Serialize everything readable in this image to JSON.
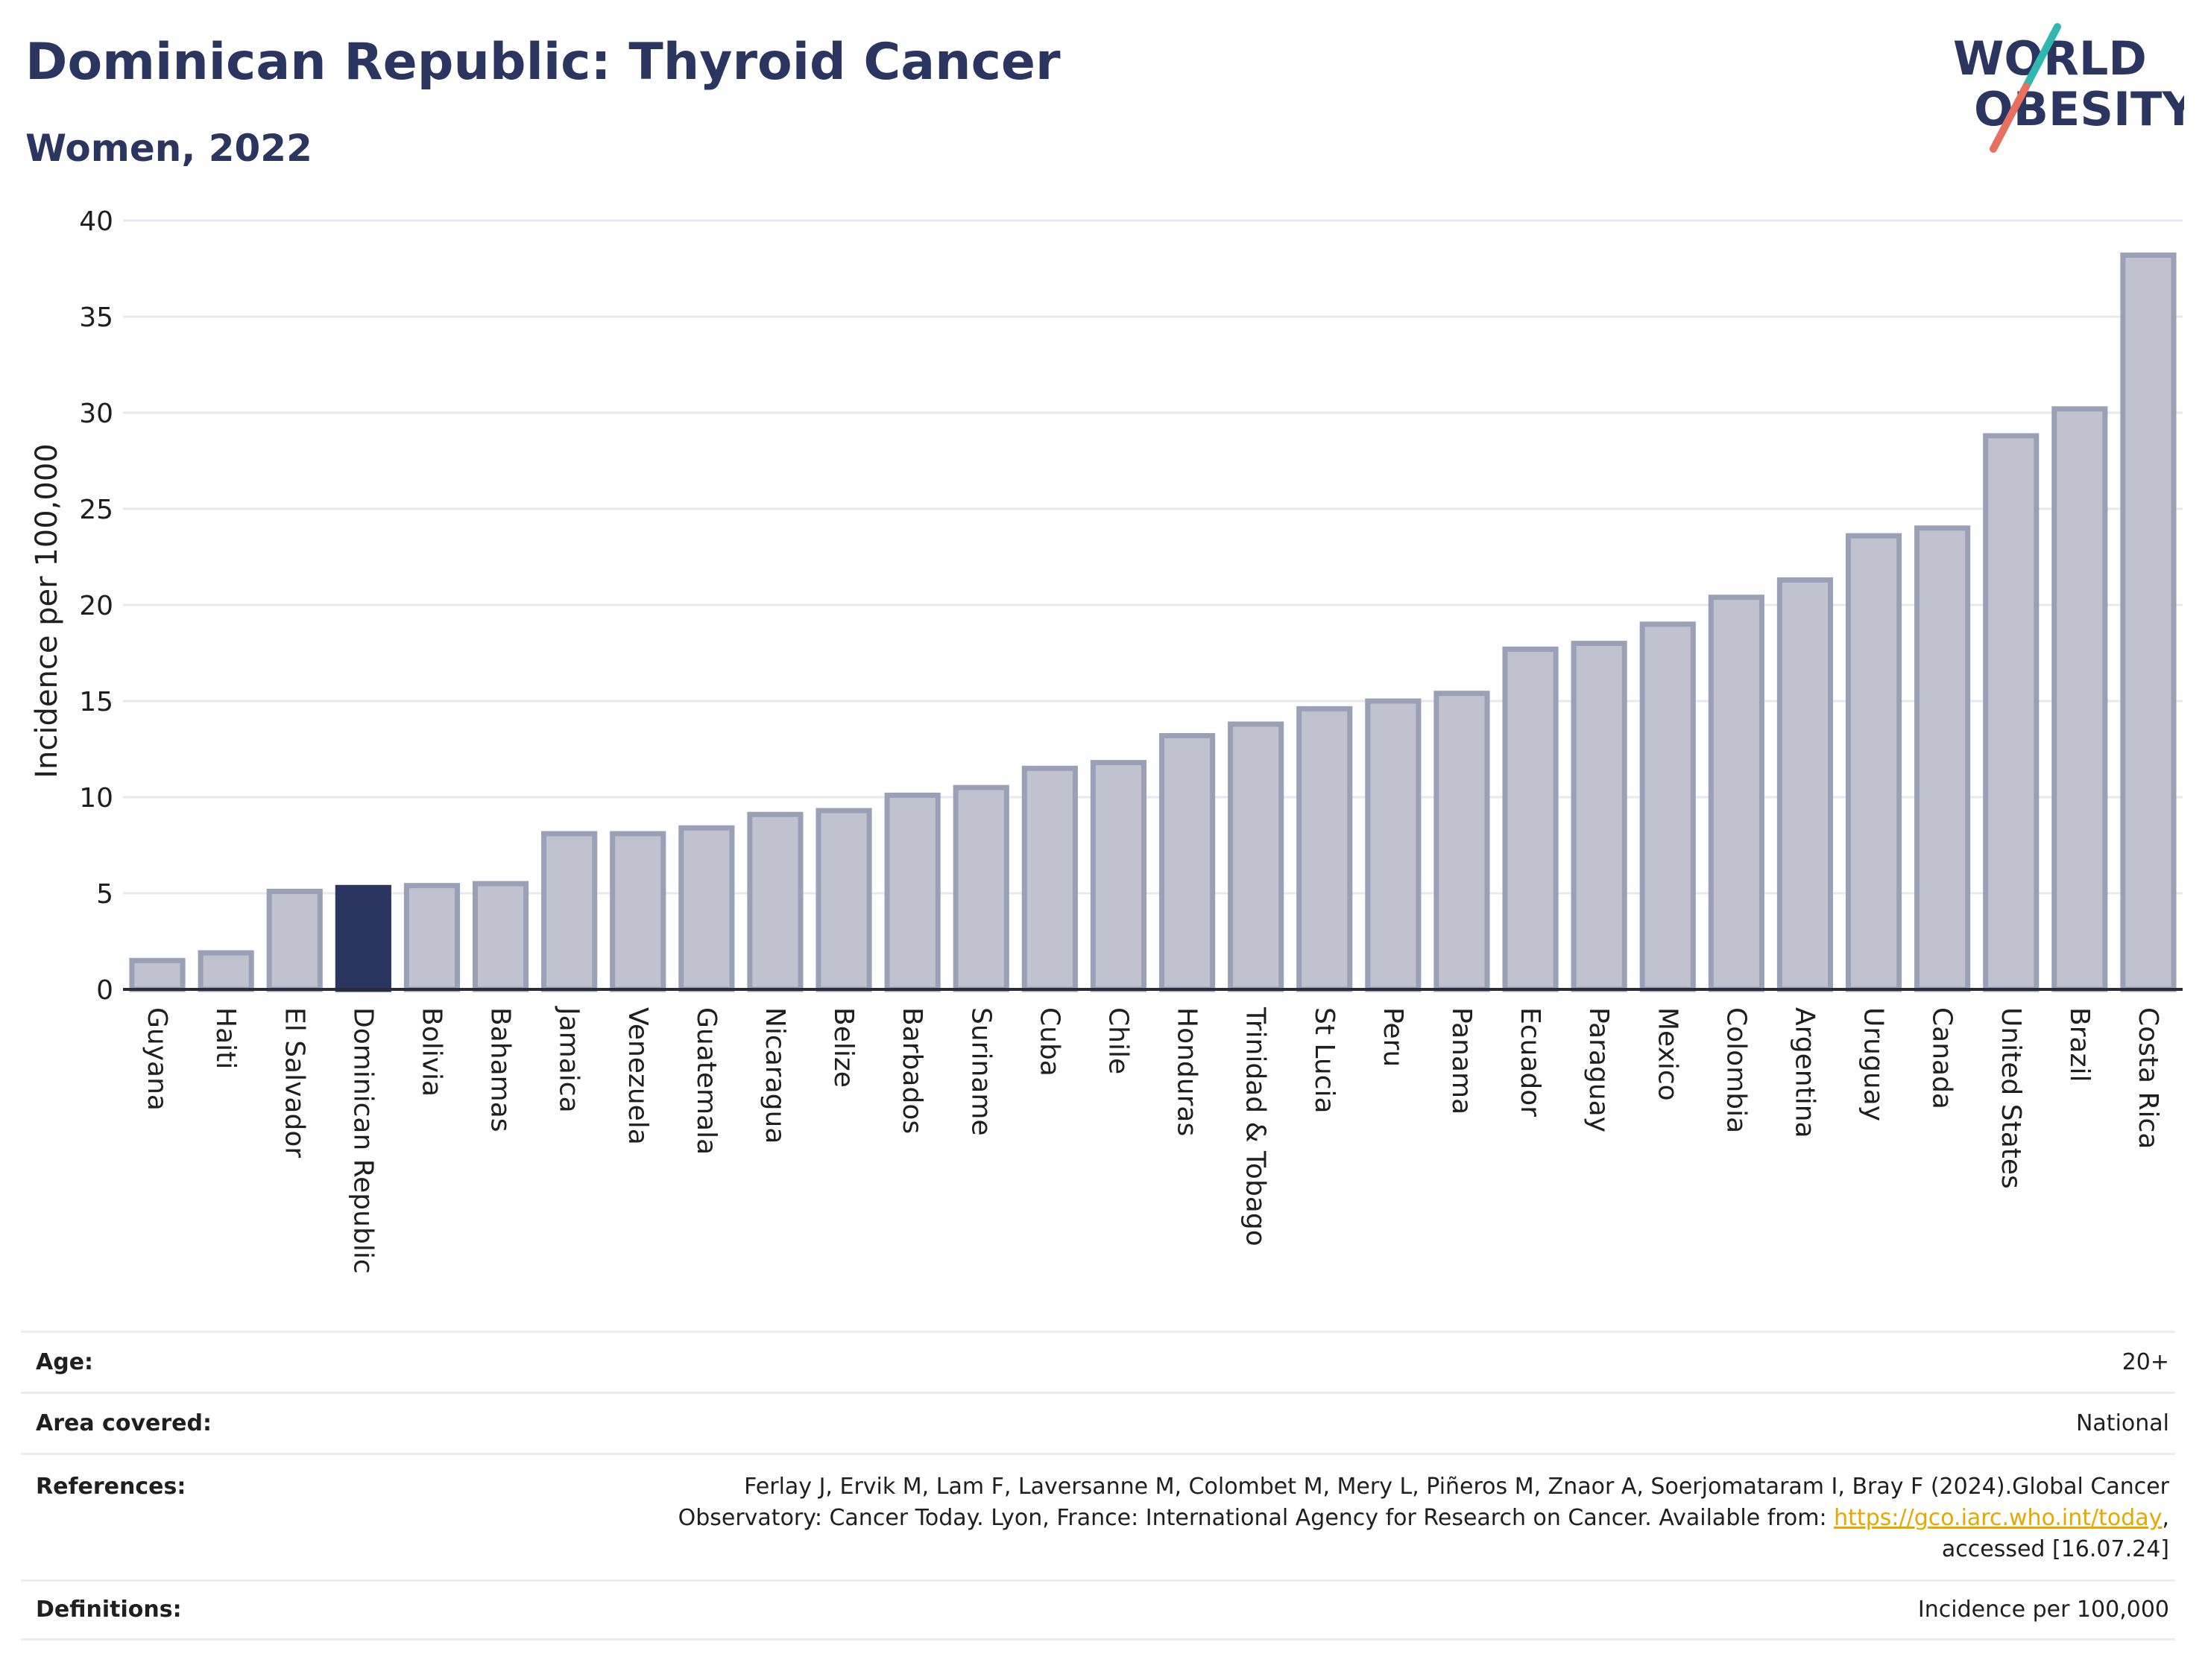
{
  "header": {
    "title": "Dominican Republic: Thyroid Cancer",
    "subtitle": "Women, 2022"
  },
  "logo": {
    "line1": "WORLD",
    "line2": "OBESITY",
    "colors": {
      "text": "#2a3560",
      "slash_teal": "#2fb8b0",
      "slash_coral": "#e8705f"
    }
  },
  "chart_data": {
    "type": "bar",
    "title": "Dominican Republic: Thyroid Cancer",
    "subtitle": "Women, 2022",
    "xlabel": "",
    "ylabel": "Incidence per 100,000",
    "ylim": [
      0,
      40
    ],
    "yticks": [
      0,
      5,
      10,
      15,
      20,
      25,
      30,
      35,
      40
    ],
    "grid": true,
    "highlight": "Dominican Republic",
    "colors": {
      "bar": "#c0c3cf",
      "bar_edge": "#9aa0b6",
      "highlight": "#2a3560",
      "grid": "#e8e8ee"
    },
    "categories": [
      "Guyana",
      "Haiti",
      "El Salvador",
      "Dominican Republic",
      "Bolivia",
      "Bahamas",
      "Jamaica",
      "Venezuela",
      "Guatemala",
      "Nicaragua",
      "Belize",
      "Barbados",
      "Suriname",
      "Cuba",
      "Chile",
      "Honduras",
      "Trinidad & Tobago",
      "St Lucia",
      "Peru",
      "Panama",
      "Ecuador",
      "Paraguay",
      "Mexico",
      "Colombia",
      "Argentina",
      "Uruguay",
      "Canada",
      "United States",
      "Brazil",
      "Costa Rica"
    ],
    "values": [
      1.5,
      1.9,
      5.1,
      5.3,
      5.4,
      5.5,
      8.1,
      8.1,
      8.4,
      9.1,
      9.3,
      10.1,
      10.5,
      11.5,
      11.8,
      13.2,
      13.8,
      14.6,
      15.0,
      15.4,
      17.7,
      18.0,
      19.0,
      20.4,
      21.3,
      23.6,
      24.0,
      28.8,
      30.2,
      38.2
    ]
  },
  "meta": {
    "age": {
      "label": "Age:",
      "value": "20+"
    },
    "area": {
      "label": "Area covered:",
      "value": "National"
    },
    "references": {
      "label": "References:",
      "line1": "Ferlay J, Ervik M, Lam F, Laversanne M, Colombet M, Mery L, Piñeros M, Znaor A, Soerjomataram I, Bray F (2024).Global Cancer",
      "line2_prefix": "Observatory: Cancer Today. Lyon, France: International Agency for Research on Cancer. Available from: ",
      "link": "https://gco.iarc.who.int/today",
      "line2_suffix": ",",
      "line3": "accessed [16.07.24]"
    },
    "definitions": {
      "label": "Definitions:",
      "value": "Incidence per 100,000"
    }
  }
}
